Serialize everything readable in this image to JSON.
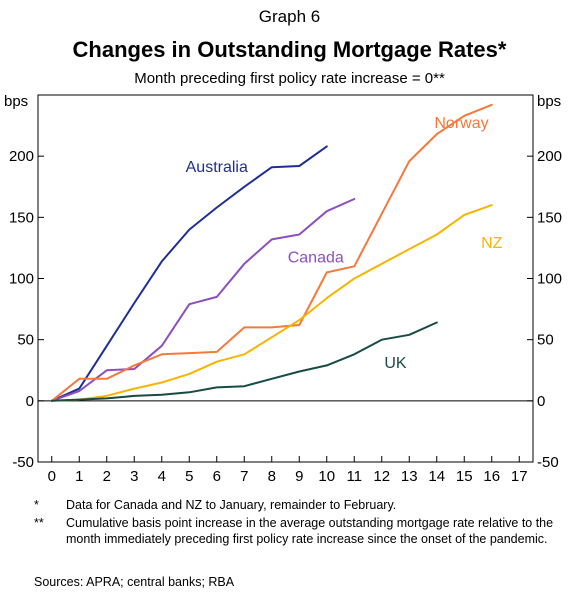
{
  "header": {
    "graph_number": "Graph 6",
    "title": "Changes in Outstanding Mortgage Rates*",
    "subtitle": "Month preceding first policy rate increase = 0**"
  },
  "chart_data": {
    "type": "line",
    "ylabel_left": "bps",
    "ylabel_right": "bps",
    "ylim": [
      -50,
      250
    ],
    "yticks": [
      -50,
      0,
      50,
      100,
      150,
      200
    ],
    "xlim": [
      -0.5,
      17.5
    ],
    "xticks": [
      0,
      1,
      2,
      3,
      4,
      5,
      6,
      7,
      8,
      9,
      10,
      11,
      12,
      13,
      14,
      15,
      16,
      17
    ],
    "grid": "horizontal",
    "legend": "inline labels",
    "series": [
      {
        "name": "Australia",
        "color": "#1f2e96",
        "label_at": [
          6.0,
          187
        ],
        "x": [
          0,
          1,
          2,
          3,
          4,
          5,
          6,
          7,
          8,
          9,
          10,
          11
        ],
        "y": [
          0,
          10,
          45,
          80,
          114,
          140,
          158,
          175,
          191,
          192,
          208,
          null
        ]
      },
      {
        "name": "Canada",
        "color": "#8d4fbf",
        "label_at": [
          9.6,
          113
        ],
        "x": [
          0,
          1,
          2,
          3,
          4,
          5,
          6,
          7,
          8,
          9,
          10,
          11,
          12
        ],
        "y": [
          0,
          8,
          25,
          26,
          45,
          79,
          85,
          112,
          132,
          136,
          155,
          165,
          null
        ]
      },
      {
        "name": "Norway",
        "color": "#f37a3c",
        "label_at": [
          14.9,
          223
        ],
        "x": [
          0,
          1,
          2,
          3,
          4,
          5,
          6,
          7,
          8,
          9,
          10,
          11,
          12,
          13,
          14,
          15,
          16,
          17
        ],
        "y": [
          0,
          18,
          18,
          29,
          38,
          39,
          40,
          60,
          60,
          62,
          105,
          110,
          153,
          196,
          218,
          233,
          242,
          null
        ]
      },
      {
        "name": "NZ",
        "color": "#f7b500",
        "label_at": [
          16.0,
          125
        ],
        "x": [
          0,
          1,
          2,
          3,
          4,
          5,
          6,
          7,
          8,
          9,
          10,
          11,
          12,
          13,
          14,
          15,
          16,
          17
        ],
        "y": [
          0,
          1,
          4,
          10,
          15,
          22,
          32,
          38,
          52,
          66,
          84,
          100,
          112,
          124,
          136,
          152,
          160,
          null
        ]
      },
      {
        "name": "UK",
        "color": "#174b44",
        "label_at": [
          12.5,
          27
        ],
        "x": [
          0,
          1,
          2,
          3,
          4,
          5,
          6,
          7,
          8,
          9,
          10,
          11,
          12,
          13,
          14,
          15
        ],
        "y": [
          0,
          1,
          2,
          4,
          5,
          7,
          11,
          12,
          18,
          24,
          29,
          38,
          50,
          54,
          64,
          null
        ]
      }
    ]
  },
  "notes": [
    {
      "mark": "*",
      "text": "Data for Canada and NZ to January, remainder to February."
    },
    {
      "mark": "**",
      "text": "Cumulative basis point increase in the average outstanding mortgage rate relative to the month immediately preceding first policy rate increase since the onset of the pandemic."
    }
  ],
  "sources": "Sources: APRA; central banks; RBA"
}
